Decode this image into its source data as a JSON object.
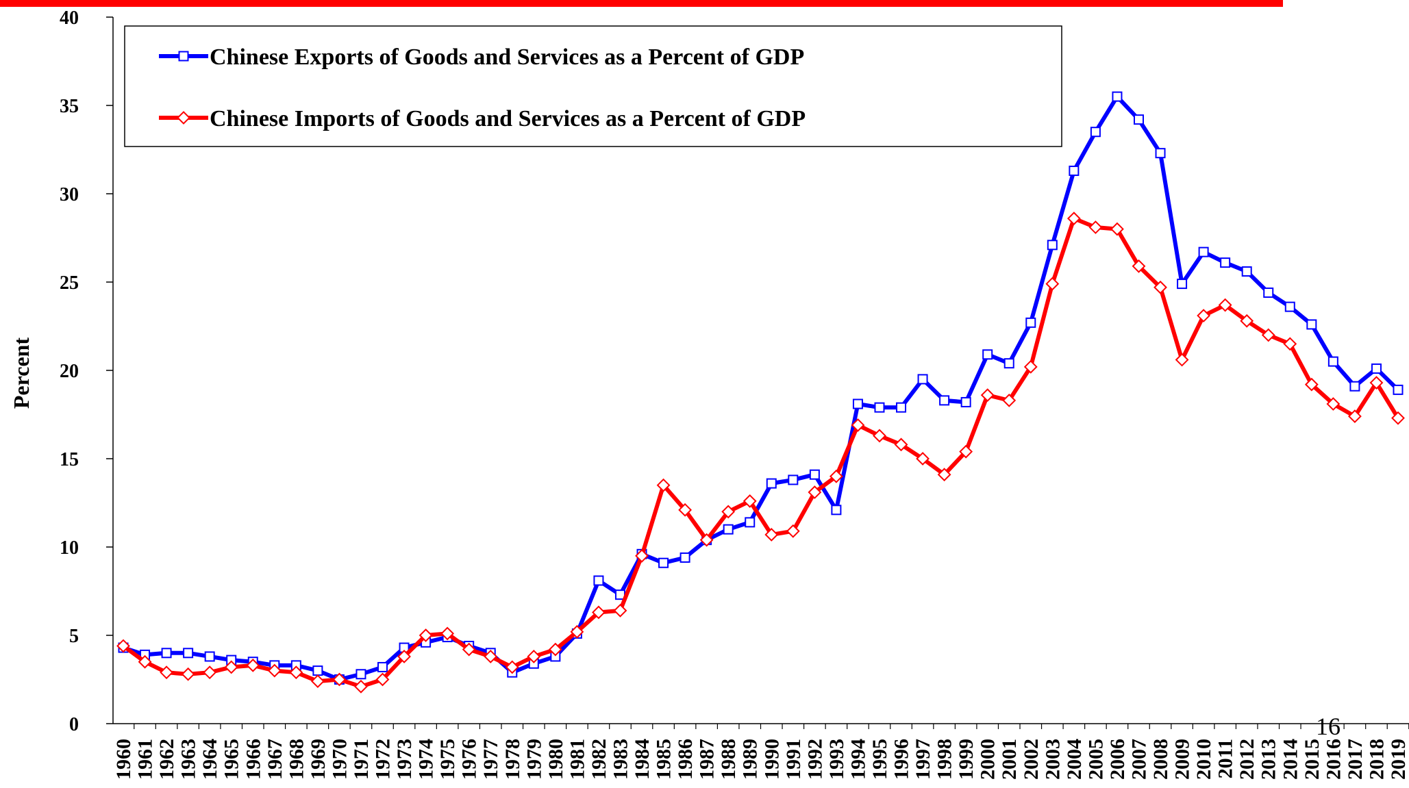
{
  "chart_data": {
    "type": "line",
    "y_label": "Percent",
    "annotation": "16",
    "categories": [
      "1960",
      "1961",
      "1962",
      "1963",
      "1964",
      "1965",
      "1966",
      "1967",
      "1968",
      "1969",
      "1970",
      "1971",
      "1972",
      "1973",
      "1974",
      "1975",
      "1976",
      "1977",
      "1978",
      "1979",
      "1980",
      "1981",
      "1982",
      "1983",
      "1984",
      "1985",
      "1986",
      "1987",
      "1988",
      "1989",
      "1990",
      "1991",
      "1992",
      "1993",
      "1994",
      "1995",
      "1996",
      "1997",
      "1998",
      "1999",
      "2000",
      "2001",
      "2002",
      "2003",
      "2004",
      "2005",
      "2006",
      "2007",
      "2008",
      "2009",
      "2010",
      "2011",
      "2012",
      "2013",
      "2014",
      "2015",
      "2016",
      "2017",
      "2018",
      "2019"
    ],
    "series": [
      {
        "name": "Chinese Exports of Goods and Services as a Percent of GDP",
        "color": "#0000ff",
        "marker": "square",
        "values": [
          4.3,
          3.9,
          4.0,
          4.0,
          3.8,
          3.6,
          3.5,
          3.3,
          3.3,
          3.0,
          2.5,
          2.8,
          3.2,
          4.3,
          4.6,
          4.9,
          4.4,
          4.0,
          2.9,
          3.4,
          3.8,
          5.1,
          8.1,
          7.3,
          9.6,
          9.1,
          9.4,
          10.4,
          11.0,
          11.4,
          13.6,
          13.8,
          14.1,
          12.1,
          18.1,
          17.9,
          17.9,
          19.5,
          18.3,
          18.2,
          20.9,
          20.4,
          22.7,
          27.1,
          31.3,
          33.5,
          35.5,
          34.2,
          32.3,
          24.9,
          26.7,
          26.1,
          25.6,
          24.4,
          23.6,
          22.6,
          20.5,
          19.1,
          20.1,
          18.9
        ]
      },
      {
        "name": "Chinese Imports of Goods and Services as a Percent of GDP",
        "color": "#ff0000",
        "marker": "diamond",
        "values": [
          4.4,
          3.5,
          2.9,
          2.8,
          2.9,
          3.2,
          3.3,
          3.0,
          2.9,
          2.4,
          2.5,
          2.1,
          2.5,
          3.8,
          5.0,
          5.1,
          4.2,
          3.8,
          3.2,
          3.8,
          4.2,
          5.2,
          6.3,
          6.4,
          9.5,
          13.5,
          12.1,
          10.4,
          12.0,
          12.6,
          10.7,
          10.9,
          13.1,
          14.0,
          16.9,
          16.3,
          15.8,
          15.0,
          14.1,
          15.4,
          18.6,
          18.3,
          20.2,
          24.9,
          28.6,
          28.1,
          28.0,
          25.9,
          24.7,
          20.6,
          23.1,
          23.7,
          22.8,
          22.0,
          21.5,
          19.2,
          18.1,
          17.4,
          19.3,
          17.3
        ]
      }
    ],
    "ylim": [
      0,
      40
    ],
    "yticks": [
      0,
      5,
      10,
      15,
      20,
      25,
      30,
      35,
      40
    ],
    "legend": "upper left",
    "header_bar_color": "#ff0000"
  }
}
